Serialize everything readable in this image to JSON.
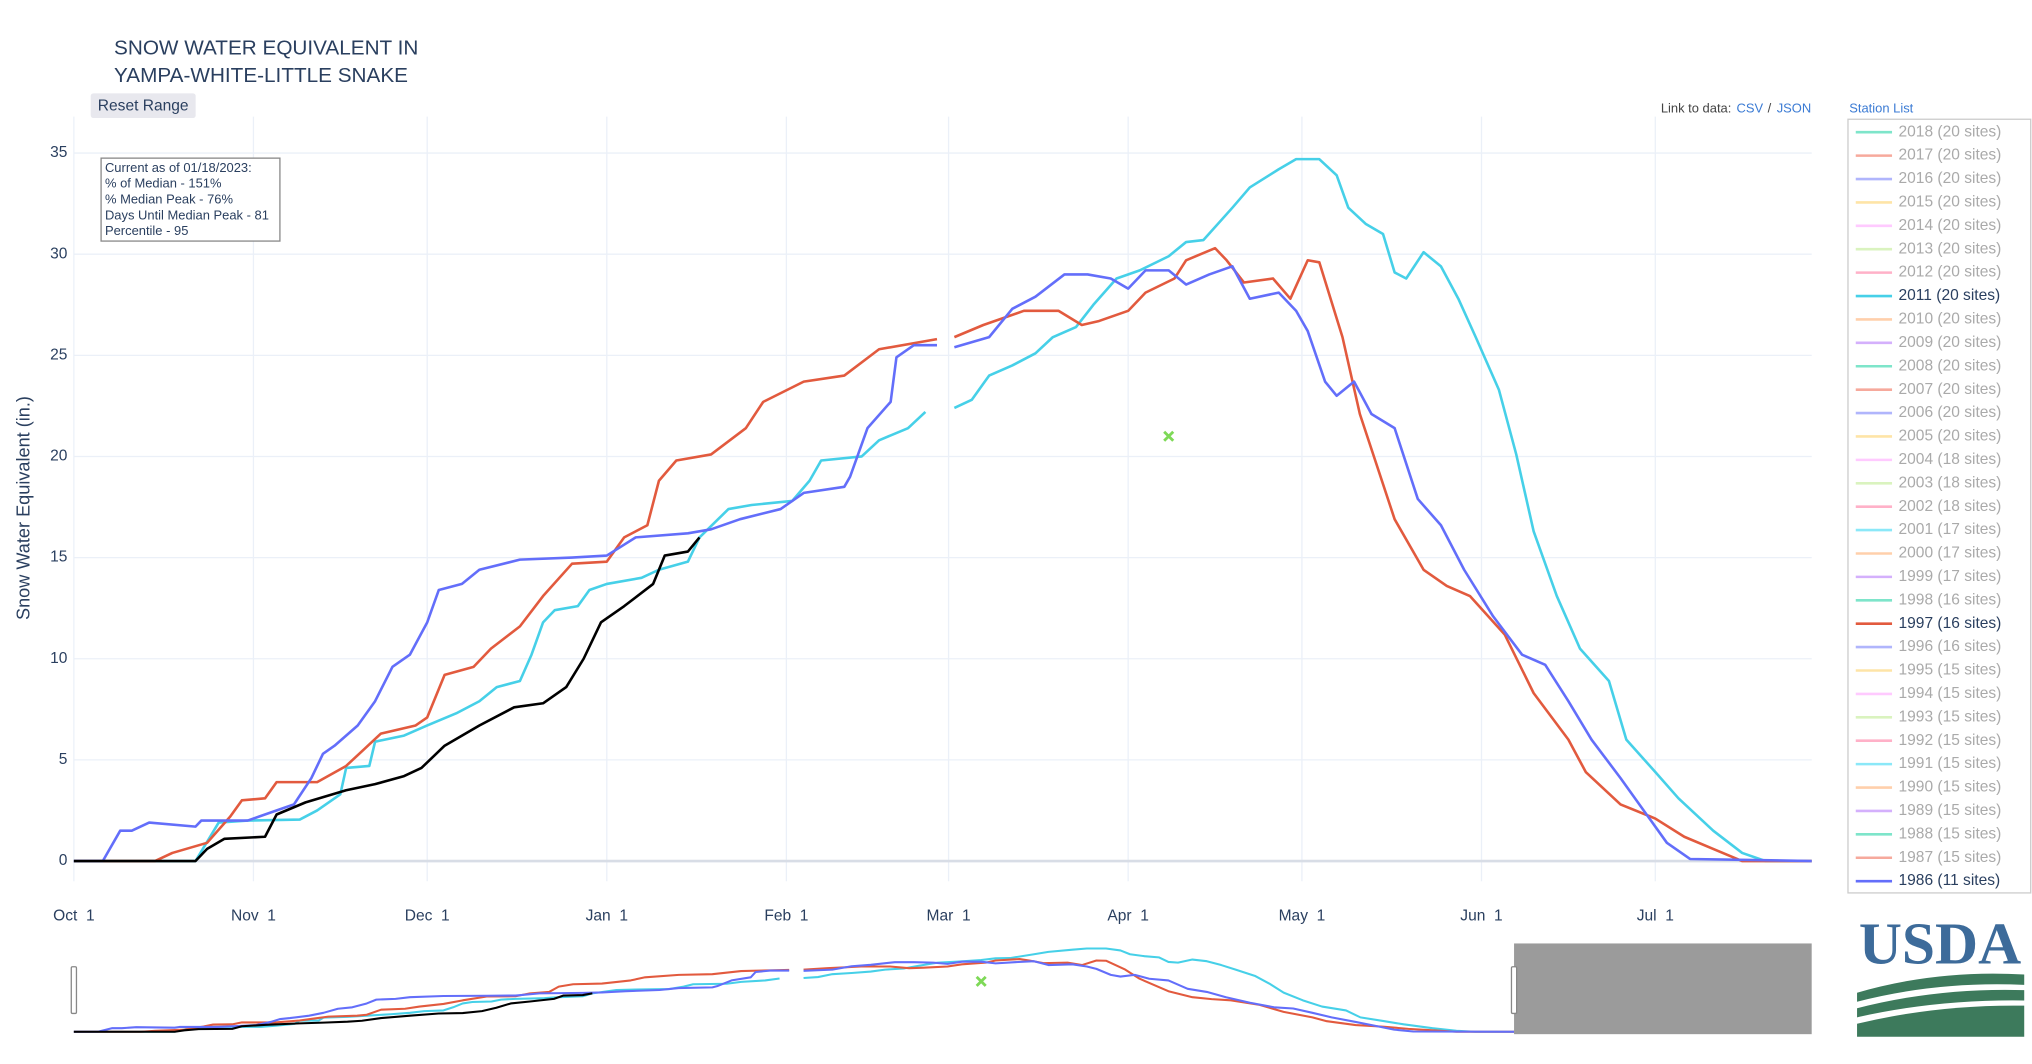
{
  "reset_button": "Reset Range",
  "links": {
    "prefix": "Link to data:",
    "csv": "CSV",
    "separator": "/",
    "json": "JSON"
  },
  "station_list": "Station List",
  "logo_text": "USDA",
  "chart_data": {
    "type": "line",
    "title": [
      "SNOW WATER EQUIVALENT IN",
      "YAMPA-WHITE-LITTLE SNAKE"
    ],
    "y_label": "Snow Water Equivalent (in.)",
    "annotation": [
      "Current as of 01/18/2023:",
      "% of Median - 151%",
      "% Median Peak - 76%",
      "Days Until Median Peak - 81",
      "Percentile - 95"
    ],
    "xlim": [
      0,
      300
    ],
    "ylim": [
      -1,
      36.8
    ],
    "xticks": [
      {
        "value": 0,
        "label": "Oct  1"
      },
      {
        "value": 31,
        "label": "Nov  1"
      },
      {
        "value": 61,
        "label": "Dec  1"
      },
      {
        "value": 92,
        "label": "Jan  1"
      },
      {
        "value": 123,
        "label": "Feb  1"
      },
      {
        "value": 151,
        "label": "Mar  1"
      },
      {
        "value": 182,
        "label": "Apr  1"
      },
      {
        "value": 212,
        "label": "May  1"
      },
      {
        "value": 243,
        "label": "Jun  1"
      },
      {
        "value": 273,
        "label": "Jul  1"
      }
    ],
    "yticks": [
      0,
      5,
      10,
      15,
      20,
      25,
      30,
      35
    ],
    "grid": true,
    "rangeslider": {
      "xlim": [
        0,
        362
      ]
    },
    "median_peak": {
      "x": 189,
      "value": 21.0,
      "color": "#7ed957"
    },
    "series": [
      {
        "name": "2018 (20 sites)",
        "color": "#00cc96",
        "visible": false
      },
      {
        "name": "2017 (20 sites)",
        "color": "#EF553B",
        "visible": false
      },
      {
        "name": "2016 (20 sites)",
        "color": "#636efa",
        "visible": false
      },
      {
        "name": "2015 (20 sites)",
        "color": "#FECB52",
        "visible": false
      },
      {
        "name": "2014 (20 sites)",
        "color": "#FF97FF",
        "visible": false
      },
      {
        "name": "2013 (20 sites)",
        "color": "#B6E880",
        "visible": false
      },
      {
        "name": "2012 (20 sites)",
        "color": "#FF6692",
        "visible": false
      },
      {
        "name": "2011 (20 sites)",
        "color": "#46d0e8",
        "visible": true,
        "x": [
          0,
          21,
          25,
          30,
          39,
          42,
          46,
          47,
          51,
          52,
          57,
          61,
          66,
          70,
          73,
          77,
          79,
          81,
          83,
          87,
          89,
          92,
          98,
          101,
          106,
          108,
          113,
          117,
          124,
          127,
          129,
          136,
          139,
          144,
          147,
          150,
          152,
          155,
          158,
          162,
          166,
          169,
          173,
          176,
          180,
          184,
          189,
          192,
          195,
          200,
          203,
          208,
          211,
          215,
          218,
          220,
          223,
          226,
          228,
          230,
          233,
          236,
          239,
          242,
          246,
          249,
          252,
          256,
          260,
          265,
          268,
          273,
          277,
          283,
          288,
          292,
          300
        ],
        "values": [
          0,
          0,
          1.9,
          2.0,
          2.05,
          2.5,
          3.3,
          4.6,
          4.7,
          5.9,
          6.2,
          6.7,
          7.3,
          7.9,
          8.6,
          8.9,
          10.2,
          11.8,
          12.4,
          12.6,
          13.4,
          13.7,
          14.0,
          14.4,
          14.8,
          16.0,
          17.4,
          17.6,
          17.8,
          18.8,
          19.8,
          20.0,
          20.8,
          21.4,
          22.2,
          null,
          22.4,
          22.8,
          24.0,
          24.5,
          25.1,
          25.9,
          26.4,
          27.5,
          28.8,
          29.2,
          29.9,
          30.6,
          30.7,
          32.3,
          33.3,
          34.2,
          34.7,
          34.7,
          33.9,
          32.3,
          31.5,
          31.0,
          29.1,
          28.8,
          30.1,
          29.4,
          27.8,
          25.9,
          23.3,
          20.1,
          16.3,
          13.1,
          10.5,
          8.9,
          6.0,
          4.4,
          3.1,
          1.5,
          0.4,
          0,
          0
        ]
      },
      {
        "name": "2010 (20 sites)",
        "color": "#FFA15A",
        "visible": false
      },
      {
        "name": "2009 (20 sites)",
        "color": "#ab63fa",
        "visible": false
      },
      {
        "name": "2008 (20 sites)",
        "color": "#00cc96",
        "visible": false
      },
      {
        "name": "2007 (20 sites)",
        "color": "#EF553B",
        "visible": false
      },
      {
        "name": "2006 (20 sites)",
        "color": "#636efa",
        "visible": false
      },
      {
        "name": "2005 (20 sites)",
        "color": "#FECB52",
        "visible": false
      },
      {
        "name": "2004 (18 sites)",
        "color": "#FF97FF",
        "visible": false
      },
      {
        "name": "2003 (18 sites)",
        "color": "#B6E880",
        "visible": false
      },
      {
        "name": "2002 (18 sites)",
        "color": "#FF6692",
        "visible": false
      },
      {
        "name": "2001 (17 sites)",
        "color": "#19d3f3",
        "visible": false
      },
      {
        "name": "2000 (17 sites)",
        "color": "#FFA15A",
        "visible": false
      },
      {
        "name": "1999 (17 sites)",
        "color": "#ab63fa",
        "visible": false
      },
      {
        "name": "1998 (16 sites)",
        "color": "#00cc96",
        "visible": false
      },
      {
        "name": "1997 (16 sites)",
        "color": "#e25a3e",
        "visible": true,
        "x": [
          0,
          14,
          17,
          23,
          27,
          29,
          33,
          35,
          42,
          47,
          50,
          53,
          59,
          61,
          64,
          69,
          72,
          77,
          81,
          86,
          92,
          95,
          99,
          101,
          104,
          110,
          116,
          119,
          126,
          133,
          139,
          149,
          150,
          152,
          157,
          164,
          170,
          174,
          177,
          182,
          185,
          190,
          192,
          197,
          199,
          202,
          207,
          210,
          213,
          215,
          219,
          222,
          228,
          233,
          237,
          241,
          247,
          252,
          258,
          261,
          267,
          273,
          278,
          283,
          288,
          300
        ],
        "values": [
          0,
          0,
          0.4,
          0.9,
          2.2,
          3.0,
          3.1,
          3.9,
          3.9,
          4.7,
          5.5,
          6.3,
          6.7,
          7.1,
          9.2,
          9.6,
          10.5,
          11.6,
          13.1,
          14.7,
          14.8,
          16.0,
          16.6,
          18.8,
          19.8,
          20.1,
          21.4,
          22.7,
          23.7,
          24.0,
          25.3,
          25.8,
          null,
          25.9,
          26.5,
          27.2,
          27.2,
          26.5,
          26.7,
          27.2,
          28.1,
          28.8,
          29.7,
          30.3,
          29.7,
          28.6,
          28.8,
          27.8,
          29.7,
          29.6,
          25.9,
          22.1,
          16.9,
          14.4,
          13.6,
          13.1,
          11.2,
          8.3,
          6.0,
          4.4,
          2.8,
          2.1,
          1.2,
          0.6,
          0,
          0
        ]
      },
      {
        "name": "1996 (16 sites)",
        "color": "#636efa",
        "visible": false
      },
      {
        "name": "1995 (15 sites)",
        "color": "#FECB52",
        "visible": false
      },
      {
        "name": "1994 (15 sites)",
        "color": "#FF97FF",
        "visible": false
      },
      {
        "name": "1993 (15 sites)",
        "color": "#B6E880",
        "visible": false
      },
      {
        "name": "1992 (15 sites)",
        "color": "#FF6692",
        "visible": false
      },
      {
        "name": "1991 (15 sites)",
        "color": "#19d3f3",
        "visible": false
      },
      {
        "name": "1990 (15 sites)",
        "color": "#FFA15A",
        "visible": false
      },
      {
        "name": "1989 (15 sites)",
        "color": "#ab63fa",
        "visible": false
      },
      {
        "name": "1988 (15 sites)",
        "color": "#00cc96",
        "visible": false
      },
      {
        "name": "1987 (15 sites)",
        "color": "#EF553B",
        "visible": false
      },
      {
        "name": "1986 (11 sites)",
        "color": "#636efa",
        "visible": true,
        "x": [
          0,
          5,
          8,
          10,
          13,
          21,
          22,
          30,
          32,
          38,
          41,
          43,
          45,
          49,
          52,
          55,
          58,
          61,
          63,
          67,
          70,
          77,
          86,
          92,
          97,
          106,
          110,
          115,
          122,
          126,
          133,
          134,
          137,
          141,
          142,
          145,
          149,
          150,
          152,
          158,
          162,
          166,
          171,
          175,
          179,
          182,
          185,
          189,
          192,
          196,
          200,
          203,
          208,
          211,
          213,
          216,
          218,
          221,
          224,
          228,
          232,
          236,
          240,
          245,
          250,
          254,
          258,
          262,
          267,
          271,
          275,
          279,
          300
        ],
        "values": [
          0,
          0,
          1.5,
          1.5,
          1.9,
          1.7,
          2.0,
          2.0,
          2.2,
          2.8,
          4.1,
          5.3,
          5.7,
          6.7,
          7.9,
          9.6,
          10.2,
          11.8,
          13.4,
          13.7,
          14.4,
          14.9,
          15.0,
          15.1,
          16.0,
          16.2,
          16.4,
          16.9,
          17.4,
          18.2,
          18.5,
          19.0,
          21.4,
          22.7,
          24.9,
          25.5,
          25.5,
          null,
          25.4,
          25.9,
          27.3,
          27.9,
          29.0,
          29.0,
          28.8,
          28.3,
          29.2,
          29.2,
          28.5,
          29.0,
          29.4,
          27.8,
          28.1,
          27.2,
          26.2,
          23.7,
          23.0,
          23.7,
          22.1,
          21.4,
          17.9,
          16.6,
          14.4,
          12.1,
          10.2,
          9.7,
          7.9,
          6.0,
          4.1,
          2.5,
          0.9,
          0.1,
          0
        ]
      },
      {
        "color": "#000000",
        "visible": true,
        "x": [
          0,
          21,
          23,
          26,
          33,
          35,
          40,
          47,
          52,
          57,
          60,
          64,
          70,
          76,
          81,
          85,
          88,
          91,
          95,
          100,
          102,
          106,
          108
        ],
        "values": [
          0,
          0,
          0.6,
          1.1,
          1.2,
          2.3,
          2.9,
          3.5,
          3.8,
          4.2,
          4.6,
          5.7,
          6.7,
          7.6,
          7.8,
          8.6,
          10.0,
          11.8,
          12.6,
          13.7,
          15.1,
          15.3,
          16.0
        ]
      }
    ]
  }
}
